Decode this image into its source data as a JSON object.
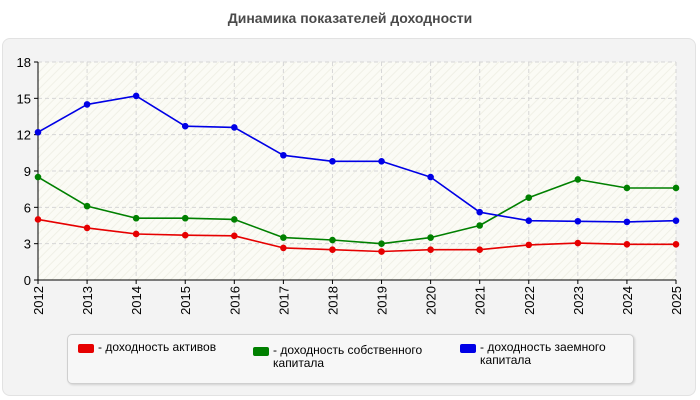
{
  "chart_data": {
    "type": "line",
    "title": "Динамика показателей доходности",
    "xlabel": "",
    "ylabel": "",
    "categories": [
      "2012",
      "2013",
      "2014",
      "2015",
      "2016",
      "2017",
      "2018",
      "2019",
      "2020",
      "2021",
      "2022",
      "2023",
      "2024",
      "2025"
    ],
    "ylim": [
      0,
      18
    ],
    "yticks": [
      "0",
      "3",
      "6",
      "9",
      "12",
      "15",
      "18"
    ],
    "grid": true,
    "legend_position": "bottom",
    "series": [
      {
        "name": "- доходность активов",
        "color": "#e60000",
        "values": [
          5.0,
          4.3,
          3.8,
          3.7,
          3.65,
          2.65,
          2.5,
          2.35,
          2.5,
          2.5,
          2.9,
          3.05,
          2.95,
          2.95
        ]
      },
      {
        "name": "- доходность собственного капитала",
        "color": "#008000",
        "values": [
          8.5,
          6.1,
          5.1,
          5.1,
          5.0,
          3.5,
          3.3,
          3.0,
          3.5,
          4.5,
          6.8,
          8.3,
          7.6,
          7.6
        ]
      },
      {
        "name": "- доходность заемного капитала",
        "color": "#0000e6",
        "values": [
          12.2,
          14.5,
          15.2,
          12.7,
          12.6,
          10.3,
          9.8,
          9.8,
          8.5,
          5.6,
          4.9,
          4.85,
          4.8,
          4.9
        ]
      }
    ]
  }
}
